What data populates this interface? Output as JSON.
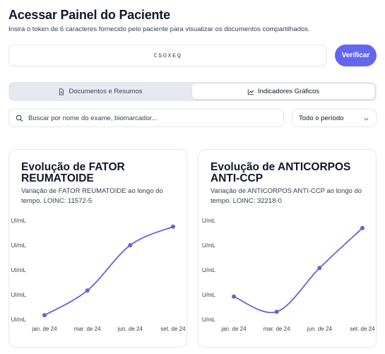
{
  "header": {
    "title": "Acessar Painel do Paciente",
    "subtitle": "Insira o token de 6 caracteres fornecido pelo paciente para visualizar os documentos compartilhados."
  },
  "token": {
    "value": "CSOXEQ"
  },
  "verify_button": {
    "label": "Verificar"
  },
  "tabs": [
    {
      "label": "Documentos e Resumos",
      "icon": "document-icon",
      "active": false
    },
    {
      "label": "Indicadores Gráficos",
      "icon": "chart-icon",
      "active": true
    }
  ],
  "search": {
    "placeholder": "Buscar por nome do exame, biomarcador..."
  },
  "period_filter": {
    "selected": "Todo o período"
  },
  "colors": {
    "accent": "#6366f1",
    "line": "#6b5fd3"
  },
  "chart_data": [
    {
      "type": "line",
      "title": "Evolução de FATOR REUMATOIDE",
      "subtitle": "Variação de FATOR REUMATOIDE ao longo do tempo. LOINC: 11572-5",
      "categories": [
        "jan. de 24",
        "mar. de 24",
        "jun. de 24",
        "set. de 24"
      ],
      "y_tick_labels": [
        "UI/mL",
        "UI/mL",
        "UI/mL",
        "UI/mL",
        "UI/mL"
      ],
      "series": [
        {
          "values": [
            12,
            24,
            46,
            55
          ]
        }
      ],
      "ylim": [
        10,
        58
      ]
    },
    {
      "type": "line",
      "title": "Evolução de ANTICORPOS ANTI-CCP",
      "subtitle": "Variação de ANTICORPOS ANTI-CCP ao longo do tempo. LOINC: 32218-0",
      "categories": [
        "jan. de 24",
        "mar. de 24",
        "jun. de 24",
        "set. de 24"
      ],
      "y_tick_labels": [
        "U/mL",
        "U/mL",
        "U/mL",
        "U/mL",
        "U/mL"
      ],
      "series": [
        {
          "values": [
            20,
            12,
            35,
            56
          ]
        }
      ],
      "ylim": [
        8,
        60
      ]
    }
  ]
}
